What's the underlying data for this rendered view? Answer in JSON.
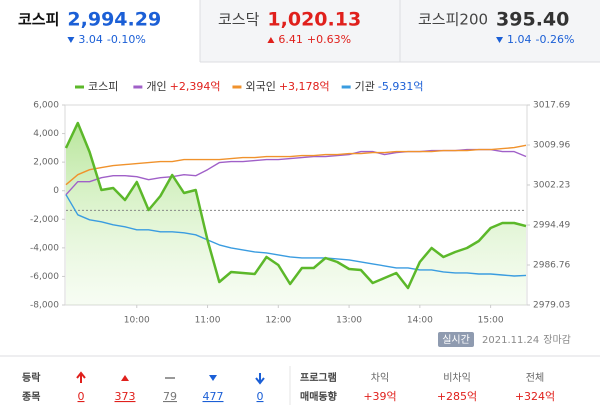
{
  "indices": [
    {
      "name": "코스피",
      "value": "2,994.29",
      "change": "3.04",
      "change_pct": "-0.10%",
      "direction": "down",
      "color": "#1b5fd6",
      "active": true
    },
    {
      "name": "코스닥",
      "value": "1,020.13",
      "change": "6.41",
      "change_pct": "+0.63%",
      "direction": "up",
      "color": "#e0201c",
      "active": false
    },
    {
      "name": "코스피200",
      "value": "395.40",
      "change": "1.04",
      "change_pct": "-0.26%",
      "direction": "down",
      "color": "#333333",
      "active": false
    }
  ],
  "chart_data": {
    "type": "line",
    "x": [
      9,
      9.1667,
      9.3333,
      9.5,
      9.6667,
      9.8333,
      10,
      10.1667,
      10.3333,
      10.5,
      10.6667,
      10.8333,
      11,
      11.1667,
      11.3333,
      11.5,
      11.6667,
      11.8333,
      12,
      12.1667,
      12.3333,
      12.5,
      12.6667,
      12.8333,
      13,
      13.1667,
      13.3333,
      13.5,
      13.6667,
      13.8333,
      14,
      14.1667,
      14.3333,
      14.5,
      14.6667,
      14.8333,
      15,
      15.1667,
      15.3333,
      15.5
    ],
    "xlim": [
      9,
      15.5
    ],
    "xticks": [
      {
        "value": 10,
        "label": "10:00"
      },
      {
        "value": 11,
        "label": "11:00"
      },
      {
        "value": 12,
        "label": "12:00"
      },
      {
        "value": 13,
        "label": "13:00"
      },
      {
        "value": 14,
        "label": "14:00"
      },
      {
        "value": 15,
        "label": "15:00"
      }
    ],
    "ylim": [
      -8000,
      6000
    ],
    "yticks": [
      {
        "value": 6000,
        "label": "6,000"
      },
      {
        "value": 4000,
        "label": "4,000"
      },
      {
        "value": 2000,
        "label": "2,000"
      },
      0,
      {
        "value": -2000,
        "label": "-2,000"
      },
      {
        "value": -4000,
        "label": "-4,000"
      },
      {
        "value": -6000,
        "label": "-6,000"
      },
      {
        "value": -8000,
        "label": "-8,000"
      }
    ],
    "y2lim": [
      2979.03,
      3017.69
    ],
    "y2ticks": [
      3017.69,
      3009.96,
      3002.23,
      2994.49,
      2986.76,
      2979.03
    ],
    "reference_line": 2997.33,
    "grid": false,
    "series": [
      {
        "name": "코스피",
        "color": "#5cb82a",
        "axis": "y2",
        "area": true,
        "values": [
          3009.38,
          3014.21,
          3008.6,
          3001.26,
          3001.65,
          2999.33,
          3002.81,
          2997.39,
          3000.1,
          3004.16,
          3000.68,
          3001.26,
          2991.59,
          2983.48,
          2985.41,
          2985.22,
          2985.02,
          2988.31,
          2986.76,
          2983.09,
          2986.18,
          2986.18,
          2988.12,
          2987.34,
          2985.99,
          2985.8,
          2983.28,
          2984.25,
          2985.22,
          2982.32,
          2987.34,
          2990.05,
          2988.31,
          2989.27,
          2990.05,
          2991.4,
          2993.91,
          2994.88,
          2994.88,
          2994.29
        ]
      },
      {
        "name": "개인",
        "value_label": "+2,394억",
        "color": "#a060c8",
        "values": [
          -281,
          632,
          632,
          913,
          1053,
          1053,
          983,
          772,
          913,
          983,
          1123,
          1053,
          1474,
          1966,
          2036,
          2036,
          2106,
          2176,
          2176,
          2246,
          2316,
          2387,
          2387,
          2457,
          2527,
          2738,
          2738,
          2527,
          2668,
          2738,
          2738,
          2808,
          2808,
          2808,
          2878,
          2878,
          2878,
          2738,
          2738,
          2394
        ]
      },
      {
        "name": "외국인",
        "value_label": "+3,178억",
        "color": "#f0922c",
        "values": [
          421,
          1123,
          1474,
          1615,
          1755,
          1825,
          1895,
          1966,
          2036,
          2036,
          2176,
          2176,
          2176,
          2176,
          2246,
          2316,
          2316,
          2387,
          2387,
          2387,
          2457,
          2457,
          2527,
          2527,
          2597,
          2597,
          2668,
          2668,
          2738,
          2738,
          2738,
          2738,
          2808,
          2808,
          2808,
          2878,
          2878,
          2948,
          3019,
          3178
        ]
      },
      {
        "name": "기관",
        "value_label": "-5,931억",
        "color": "#3a9ce0",
        "values": [
          -281,
          -1685,
          -2036,
          -2176,
          -2387,
          -2527,
          -2738,
          -2738,
          -2878,
          -2878,
          -2948,
          -3089,
          -3440,
          -3791,
          -4001,
          -4142,
          -4282,
          -4352,
          -4493,
          -4633,
          -4703,
          -4703,
          -4703,
          -4774,
          -4844,
          -4984,
          -5125,
          -5265,
          -5405,
          -5405,
          -5546,
          -5546,
          -5686,
          -5756,
          -5756,
          -5827,
          -5827,
          -5897,
          -5967,
          -5931
        ]
      }
    ]
  },
  "status": {
    "badge": "실시간",
    "date": "2021.11.24",
    "state": "장마감"
  },
  "breadth": {
    "labels": [
      "등락",
      "종목"
    ],
    "items": [
      {
        "kind": "limit_up",
        "count": "0"
      },
      {
        "kind": "up",
        "count": "373"
      },
      {
        "kind": "flat",
        "count": "79"
      },
      {
        "kind": "down",
        "count": "477"
      },
      {
        "kind": "limit_down",
        "count": "0"
      }
    ]
  },
  "program": {
    "labels": [
      "프로그램",
      "매매동향"
    ],
    "columns": [
      {
        "label": "차익",
        "value": "+39억"
      },
      {
        "label": "비차익",
        "value": "+285억"
      },
      {
        "label": "전체",
        "value": "+324억"
      }
    ]
  }
}
